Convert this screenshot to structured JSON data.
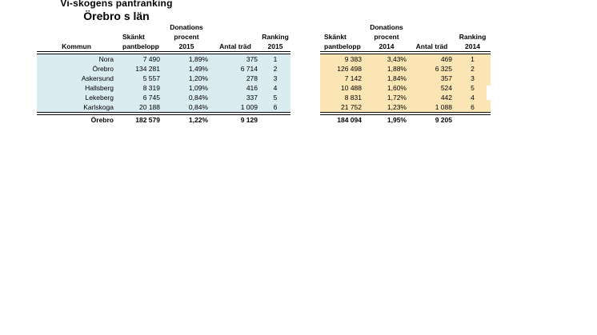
{
  "title": "Vi-skogens pantranking",
  "subtitle": "Örebro s län",
  "tables": [
    {
      "id": "2015",
      "fill": "#DAEBF2",
      "headers": [
        {
          "lines": [
            "Kommun"
          ]
        },
        {
          "lines": [
            "Skänkt",
            "pantbelopp"
          ]
        },
        {
          "lines": [
            "Donations",
            "procent",
            "2015"
          ]
        },
        {
          "lines": [
            "Antal träd"
          ]
        },
        {
          "lines": [
            "Ranking",
            "2015"
          ]
        }
      ],
      "rows": [
        [
          "Nora",
          "7 490",
          "1,89%",
          "375",
          "1"
        ],
        [
          "Örebro",
          "134 281",
          "1,49%",
          "6 714",
          "2"
        ],
        [
          "Askersund",
          "5 557",
          "1,20%",
          "278",
          "3"
        ],
        [
          "Hallsberg",
          "8 319",
          "1,09%",
          "416",
          "4"
        ],
        [
          "Lekeberg",
          "6 745",
          "0,84%",
          "337",
          "5"
        ],
        [
          "Karlskoga",
          "20 188",
          "0,84%",
          "1 009",
          "6"
        ]
      ],
      "total": [
        "Örebro",
        "182 579",
        "1,22%",
        "9 129",
        ""
      ]
    },
    {
      "id": "2014",
      "fill": "#FBE5B4",
      "headers": [
        {
          "lines": [
            "Skänkt",
            "pantbelopp"
          ]
        },
        {
          "lines": [
            "Donations",
            "procent",
            "2014"
          ]
        },
        {
          "lines": [
            "Antal träd"
          ]
        },
        {
          "lines": [
            "Ranking",
            "2014"
          ]
        }
      ],
      "rows": [
        [
          "9 383",
          "3,43%",
          "469",
          "1"
        ],
        [
          "126 498",
          "1,88%",
          "6 325",
          "2"
        ],
        [
          "7 142",
          "1,84%",
          "357",
          "3"
        ],
        [
          "10 488",
          "1,60%",
          "524",
          "5"
        ],
        [
          "8 831",
          "1,72%",
          "442",
          "4"
        ],
        [
          "21 752",
          "1,23%",
          "1 088",
          "6"
        ]
      ],
      "total": [
        "184 094",
        "1,95%",
        "9 205",
        ""
      ]
    }
  ]
}
